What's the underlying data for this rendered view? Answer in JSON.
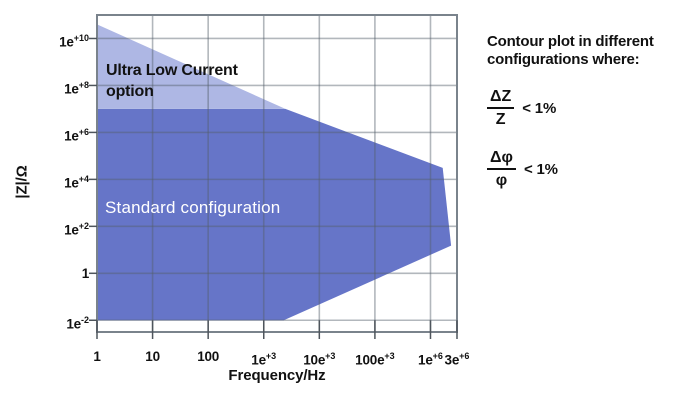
{
  "chart_data": {
    "type": "area",
    "title": "",
    "xlabel": "Frequency/Hz",
    "ylabel": "|Z|/Ω",
    "x_scale": "log10",
    "y_scale": "log10",
    "x_range_log10": [
      0,
      6.477
    ],
    "y_range_log10": [
      -2.5,
      11
    ],
    "grid": true,
    "grid_color": "rgba(84,95,107,0.45)",
    "frame_color": "#7A838C",
    "tick_color": "#4E555C",
    "x_gridlines_log10": [
      0,
      1,
      2,
      3,
      4,
      5,
      6,
      6.477
    ],
    "y_gridlines_log10": [
      10,
      8,
      6,
      4,
      2,
      0,
      -2
    ],
    "x_ticks": [
      {
        "log10": 0,
        "label": "1"
      },
      {
        "log10": 1,
        "label": "10"
      },
      {
        "log10": 2,
        "label": "100"
      },
      {
        "log10": 3,
        "label": "1e+3"
      },
      {
        "log10": 4,
        "label": "10e+3"
      },
      {
        "log10": 5,
        "label": "100e+3"
      },
      {
        "log10": 6,
        "label": "1e+6"
      },
      {
        "log10": 6.477,
        "label": "3e+6"
      }
    ],
    "y_ticks": [
      {
        "log10": 10,
        "label": "1e+10"
      },
      {
        "log10": 8,
        "label": "1e+8"
      },
      {
        "log10": 6,
        "label": "1e+6"
      },
      {
        "log10": 4,
        "label": "1e+4"
      },
      {
        "log10": 2,
        "label": "1e+2"
      },
      {
        "log10": 0,
        "label": "1"
      },
      {
        "log10": -2,
        "label": "1e-2"
      }
    ],
    "regions": [
      {
        "name": "standard-configuration",
        "label": "Standard configuration",
        "fill": "#6675C8",
        "label_color": "#FFFFFF",
        "points_log10": [
          [
            0,
            7
          ],
          [
            3.39,
            7
          ],
          [
            6.22,
            4.49
          ],
          [
            6.37,
            1.18
          ],
          [
            3.36,
            -2
          ],
          [
            0,
            -2
          ]
        ]
      },
      {
        "name": "ultra-low-current-option",
        "label": "Ultra Low Current\noption",
        "fill": "#AEB7E4",
        "label_color": "#121212",
        "points_log10": [
          [
            0,
            10.6
          ],
          [
            3.39,
            7
          ],
          [
            0,
            7
          ]
        ]
      }
    ]
  },
  "side_panel": {
    "heading": "Contour plot in different\nconfigurations where:",
    "conditions": [
      {
        "numerator": "ΔZ",
        "denominator": "Z",
        "relation": "< 1%"
      },
      {
        "numerator": "Δφ",
        "denominator": "φ",
        "relation": "< 1%"
      }
    ]
  }
}
